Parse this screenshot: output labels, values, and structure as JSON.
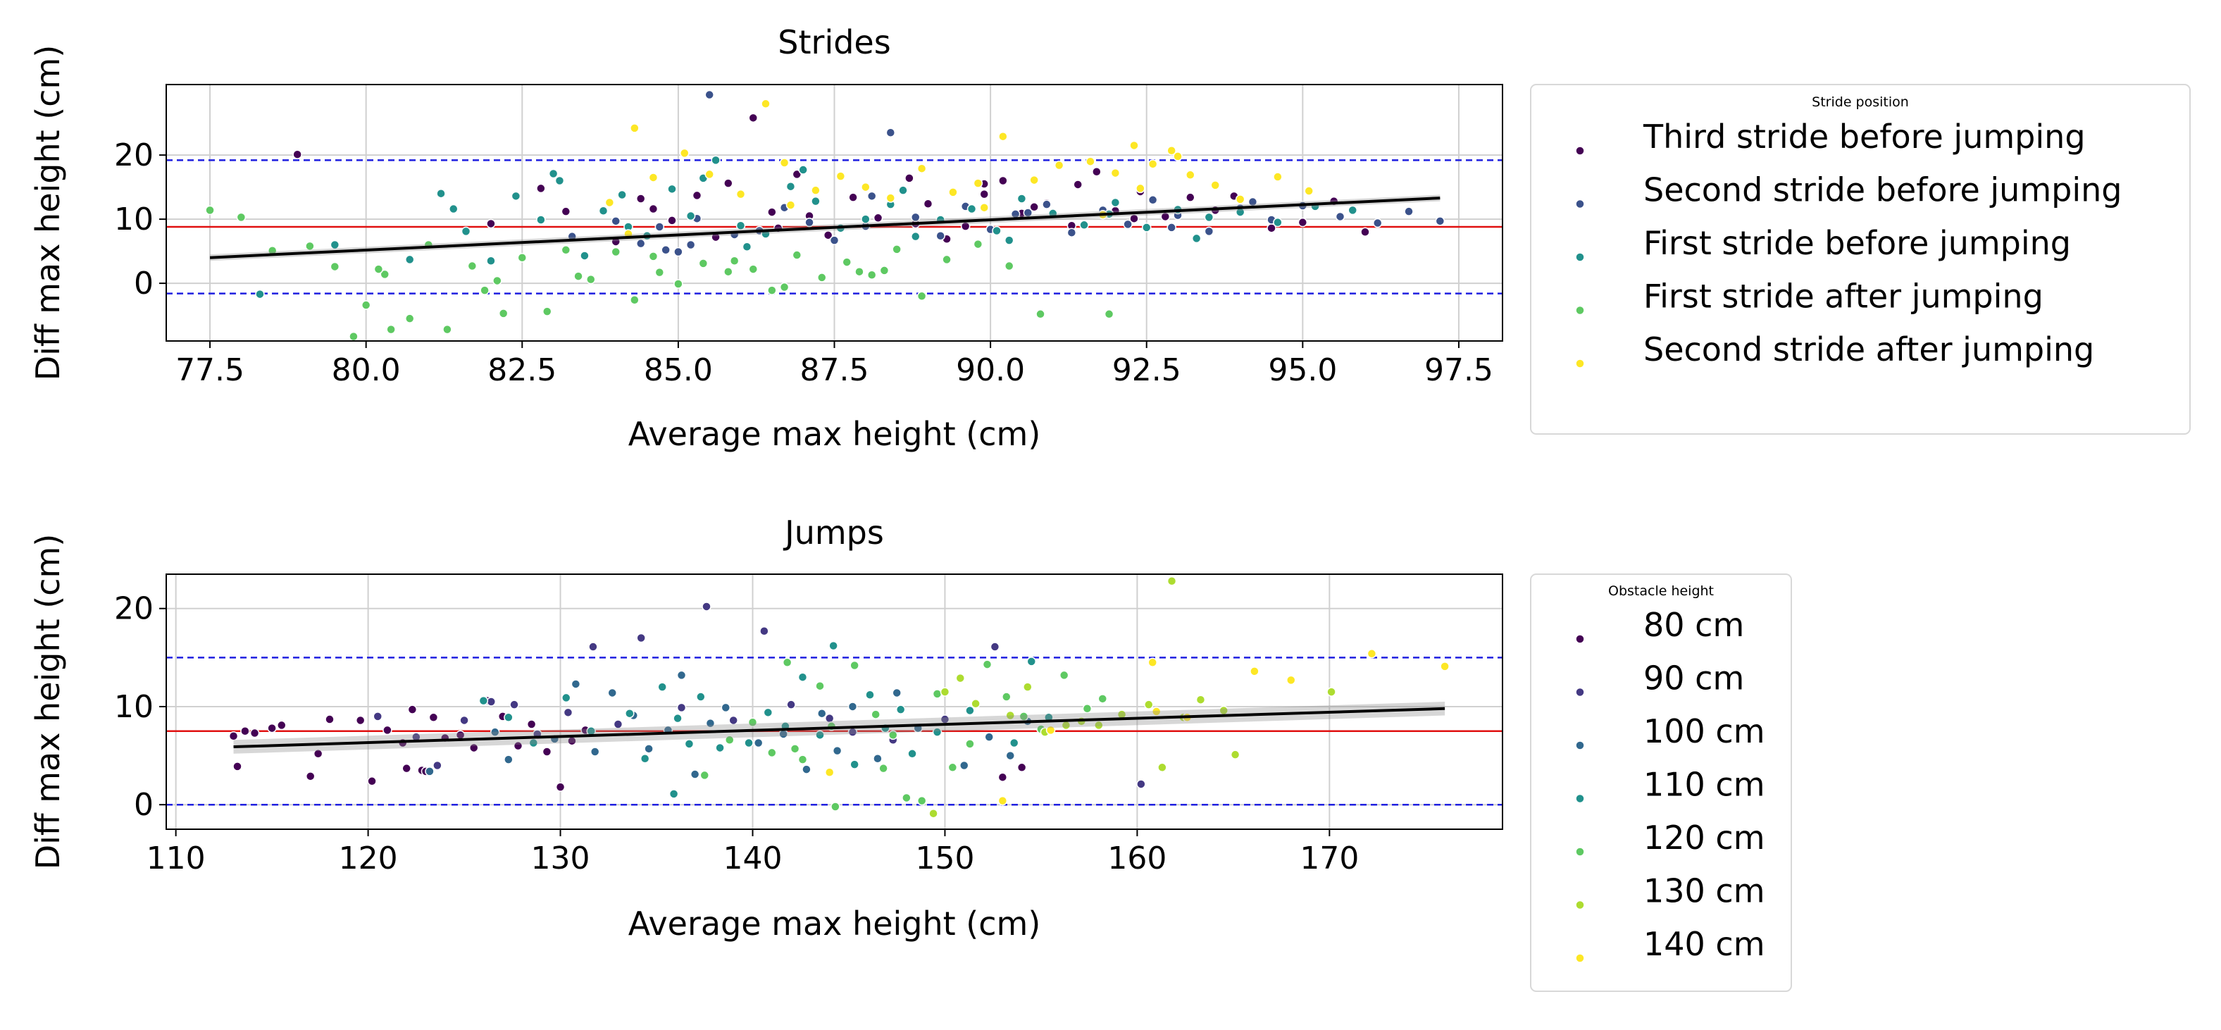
{
  "chart_data": [
    {
      "type": "scatter",
      "title": "Strides",
      "xlabel": "Average max height (cm)",
      "ylabel": "Diff max height (cm)",
      "xlim": [
        76.8,
        98.2
      ],
      "ylim": [
        -9,
        31
      ],
      "xticks": [
        "77.5",
        "80.0",
        "82.5",
        "85.0",
        "87.5",
        "90.0",
        "92.5",
        "95.0",
        "97.5"
      ],
      "xtick_values": [
        77.5,
        80.0,
        82.5,
        85.0,
        87.5,
        90.0,
        92.5,
        95.0,
        97.5
      ],
      "yticks": [
        "0",
        "10",
        "20"
      ],
      "ytick_values": [
        0,
        10,
        20
      ],
      "grid": true,
      "mean_line": 8.8,
      "limit_lines": [
        19.2,
        -1.6
      ],
      "regression": {
        "x": [
          77.5,
          97.2
        ],
        "y": [
          4.0,
          13.3
        ],
        "ci_halfwidth": 0.5
      },
      "legend_title": "Stride position",
      "series": [
        {
          "name": "Third stride before jumping",
          "color": "#440154",
          "x": [
            78.9,
            82.0,
            82.8,
            83.2,
            84.0,
            84.4,
            84.9,
            85.3,
            85.8,
            86.2,
            86.5,
            86.9,
            87.4,
            87.8,
            88.2,
            88.7,
            89.0,
            89.3,
            89.6,
            89.9,
            90.2,
            90.5,
            90.9,
            91.3,
            91.7,
            92.0,
            92.4,
            92.8,
            93.2,
            93.6,
            94.0,
            94.5,
            95.0,
            95.5,
            96.0,
            86.6,
            85.6,
            84.6,
            89.9,
            91.4,
            92.3,
            93.9,
            88.8,
            87.1,
            90.7
          ],
          "y": [
            20.1,
            9.3,
            14.8,
            11.2,
            6.5,
            13.2,
            9.8,
            13.7,
            15.6,
            25.8,
            11.1,
            17.0,
            7.5,
            13.4,
            10.2,
            16.4,
            12.4,
            6.9,
            8.9,
            15.5,
            16.0,
            10.9,
            12.5,
            9.0,
            17.4,
            11.3,
            14.3,
            10.4,
            13.4,
            11.4,
            12.9,
            8.6,
            9.5,
            12.8,
            8.0,
            8.6,
            7.2,
            11.6,
            13.9,
            15.4,
            10.1,
            13.6,
            9.3,
            10.5,
            11.9
          ]
        },
        {
          "name": "Second stride before jumping",
          "color": "#3b528b",
          "x": [
            83.3,
            84.0,
            84.4,
            84.7,
            85.0,
            85.3,
            85.5,
            85.9,
            86.3,
            86.7,
            87.1,
            87.5,
            88.0,
            88.4,
            88.8,
            89.2,
            89.6,
            90.0,
            90.4,
            90.9,
            91.3,
            91.8,
            92.2,
            92.6,
            93.0,
            93.5,
            94.0,
            94.5,
            95.0,
            95.6,
            96.2,
            96.7,
            97.2,
            85.2,
            84.8,
            86.0,
            88.1,
            90.6,
            92.9,
            94.2
          ],
          "y": [
            7.3,
            9.7,
            6.2,
            8.8,
            4.9,
            10.1,
            29.4,
            7.6,
            8.2,
            11.8,
            9.5,
            6.7,
            8.9,
            23.5,
            10.3,
            7.4,
            12.0,
            8.4,
            10.8,
            12.3,
            7.9,
            11.4,
            9.2,
            13.0,
            10.6,
            8.1,
            11.7,
            9.9,
            12.1,
            10.4,
            9.4,
            11.2,
            9.7,
            6.0,
            5.2,
            9.1,
            13.6,
            11.0,
            8.7,
            12.7
          ]
        },
        {
          "name": "First stride before jumping",
          "color": "#21918c",
          "x": [
            78.3,
            79.5,
            80.7,
            81.2,
            81.6,
            82.0,
            82.4,
            82.8,
            83.1,
            83.5,
            83.8,
            84.2,
            84.5,
            84.9,
            85.2,
            85.6,
            86.0,
            86.4,
            86.8,
            87.2,
            87.6,
            88.0,
            88.4,
            88.8,
            89.2,
            89.7,
            90.1,
            90.5,
            91.0,
            91.5,
            92.0,
            92.5,
            93.0,
            93.5,
            94.0,
            94.6,
            95.2,
            95.8,
            81.4,
            83.0,
            84.1,
            85.4,
            86.1,
            87.0,
            88.6,
            90.3,
            91.9,
            93.3
          ],
          "y": [
            -1.7,
            6.0,
            3.7,
            14.0,
            8.1,
            3.5,
            13.6,
            9.9,
            16.0,
            4.3,
            11.3,
            8.8,
            7.4,
            14.7,
            10.5,
            19.2,
            9.0,
            7.7,
            15.1,
            12.8,
            8.6,
            10.0,
            12.3,
            7.3,
            9.9,
            11.6,
            8.2,
            13.2,
            10.9,
            9.1,
            12.6,
            8.7,
            11.5,
            10.3,
            11.1,
            9.5,
            12.0,
            11.4,
            11.6,
            17.1,
            13.8,
            16.4,
            5.7,
            17.7,
            14.5,
            6.7,
            10.8,
            7.0
          ]
        },
        {
          "name": "First stride after jumping",
          "color": "#5ec962",
          "x": [
            77.5,
            78.0,
            78.5,
            79.1,
            79.5,
            80.0,
            80.3,
            80.7,
            81.0,
            81.3,
            81.7,
            82.1,
            82.5,
            82.9,
            83.2,
            83.6,
            84.0,
            84.3,
            84.7,
            85.0,
            85.4,
            85.8,
            86.2,
            86.5,
            86.9,
            87.3,
            87.7,
            88.1,
            88.5,
            88.9,
            89.3,
            89.8,
            90.3,
            90.8,
            91.9,
            79.8,
            80.4,
            81.9,
            83.4,
            84.6,
            85.9,
            86.7,
            87.9,
            88.3,
            80.2,
            82.2
          ],
          "y": [
            11.4,
            10.3,
            5.1,
            5.8,
            2.6,
            -3.4,
            1.4,
            -5.5,
            6.0,
            -7.2,
            2.7,
            0.4,
            4.0,
            -4.4,
            5.2,
            0.6,
            4.9,
            -2.6,
            1.7,
            -0.1,
            3.1,
            1.8,
            2.2,
            -1.1,
            4.4,
            0.9,
            3.3,
            1.3,
            5.3,
            -2.0,
            3.7,
            6.1,
            2.7,
            -4.8,
            -4.8,
            -8.3,
            -7.2,
            -1.1,
            1.1,
            4.2,
            3.5,
            -0.6,
            1.8,
            2.0,
            2.2,
            -4.7
          ]
        },
        {
          "name": "Second stride after jumping",
          "color": "#fde725",
          "x": [
            83.9,
            84.3,
            84.6,
            85.1,
            85.5,
            86.0,
            86.4,
            86.7,
            87.2,
            87.6,
            88.0,
            88.4,
            88.9,
            89.4,
            89.8,
            90.2,
            90.7,
            91.1,
            91.6,
            92.0,
            92.3,
            92.6,
            92.9,
            93.2,
            93.6,
            94.0,
            94.6,
            95.1,
            86.8,
            89.9,
            92.4,
            93.0,
            84.2,
            91.8
          ],
          "y": [
            12.6,
            24.2,
            16.5,
            20.3,
            17.0,
            13.9,
            28.0,
            18.8,
            14.5,
            16.7,
            15.0,
            13.3,
            17.9,
            14.2,
            15.6,
            22.9,
            16.1,
            18.4,
            19.0,
            17.2,
            21.5,
            18.6,
            20.7,
            16.9,
            15.3,
            13.1,
            16.6,
            14.4,
            12.2,
            11.8,
            14.8,
            19.8,
            7.7,
            10.7
          ]
        }
      ]
    },
    {
      "type": "scatter",
      "title": "Jumps",
      "xlabel": "Average max height (cm)",
      "ylabel": "Diff max height (cm)",
      "xlim": [
        109.5,
        179.0
      ],
      "ylim": [
        -2.5,
        23.5
      ],
      "xticks": [
        "110",
        "120",
        "130",
        "140",
        "150",
        "160",
        "170"
      ],
      "xtick_values": [
        110,
        120,
        130,
        140,
        150,
        160,
        170
      ],
      "yticks": [
        "0",
        "10",
        "20"
      ],
      "ytick_values": [
        0,
        10,
        20
      ],
      "grid": true,
      "mean_line": 7.5,
      "limit_lines": [
        15.0,
        0.0
      ],
      "regression": {
        "x": [
          113,
          176
        ],
        "y": [
          5.9,
          9.8
        ],
        "ci_halfwidth": 0.7
      },
      "legend_title": "Obstacle height",
      "series": [
        {
          "name": "80 cm",
          "color": "#440154",
          "x": [
            113.0,
            113.2,
            113.6,
            114.1,
            115.0,
            115.5,
            117.0,
            117.4,
            118.0,
            119.6,
            120.2,
            121.0,
            121.8,
            122.3,
            122.8,
            123.4,
            124.0,
            124.8,
            125.5,
            126.2,
            127.0,
            127.8,
            128.5,
            129.3,
            130.0,
            130.6,
            131.3,
            122.0,
            123.0,
            153.0,
            154.0
          ],
          "y": [
            7.0,
            3.9,
            7.5,
            7.3,
            7.8,
            8.1,
            2.9,
            5.2,
            8.7,
            8.6,
            2.4,
            7.6,
            6.3,
            9.7,
            3.5,
            8.9,
            6.8,
            7.1,
            5.8,
            10.6,
            9.0,
            6.0,
            8.2,
            5.4,
            1.8,
            6.5,
            7.6,
            3.7,
            3.4,
            2.8,
            3.8
          ]
        },
        {
          "name": "90 cm",
          "color": "#443983",
          "x": [
            120.5,
            122.5,
            123.6,
            125.0,
            126.4,
            127.6,
            128.8,
            130.4,
            131.7,
            133.0,
            134.2,
            136.3,
            137.6,
            139.0,
            140.6,
            142.0,
            144.0,
            145.2,
            147.3,
            150.0,
            152.6,
            160.2
          ],
          "y": [
            9.0,
            6.9,
            4.0,
            8.6,
            10.5,
            10.2,
            7.2,
            9.4,
            16.1,
            8.2,
            17.0,
            9.9,
            20.2,
            8.6,
            17.7,
            10.2,
            8.8,
            7.4,
            6.6,
            8.7,
            16.1,
            2.1
          ]
        },
        {
          "name": "100 cm",
          "color": "#31688e",
          "x": [
            123.2,
            126.6,
            127.3,
            129.7,
            130.8,
            131.8,
            132.7,
            133.8,
            134.6,
            135.6,
            136.3,
            137.0,
            137.8,
            138.6,
            140.3,
            141.6,
            142.8,
            143.6,
            144.4,
            145.2,
            146.5,
            147.5,
            148.6,
            151.0,
            152.3,
            153.4,
            154.3
          ],
          "y": [
            3.4,
            7.4,
            4.6,
            6.7,
            12.3,
            5.4,
            11.4,
            9.1,
            5.7,
            7.6,
            13.2,
            3.1,
            8.3,
            9.9,
            6.3,
            7.2,
            3.6,
            9.3,
            5.5,
            10.0,
            4.7,
            11.4,
            7.8,
            4.0,
            6.9,
            5.0,
            8.5
          ]
        },
        {
          "name": "110 cm",
          "color": "#21918c",
          "x": [
            126.0,
            127.3,
            128.6,
            130.3,
            131.6,
            133.6,
            134.4,
            135.3,
            136.1,
            136.7,
            137.3,
            138.3,
            139.8,
            140.8,
            141.7,
            142.6,
            143.5,
            144.2,
            145.3,
            146.1,
            146.9,
            147.7,
            148.3,
            149.6,
            151.3,
            153.6,
            154.5,
            155.4,
            135.9
          ],
          "y": [
            10.6,
            8.9,
            6.3,
            10.9,
            7.5,
            9.3,
            4.7,
            12.0,
            8.8,
            6.2,
            11.0,
            5.8,
            6.3,
            9.4,
            8.0,
            13.0,
            7.1,
            16.2,
            4.1,
            11.2,
            7.8,
            9.7,
            5.2,
            7.4,
            9.6,
            6.3,
            14.6,
            8.9,
            1.1
          ]
        },
        {
          "name": "120 cm",
          "color": "#5ec962",
          "x": [
            137.5,
            138.8,
            140.0,
            141.0,
            141.8,
            142.6,
            143.5,
            144.3,
            145.3,
            146.4,
            147.3,
            148.0,
            148.8,
            149.6,
            150.4,
            151.3,
            152.2,
            153.2,
            154.1,
            155.0,
            156.2,
            157.4,
            158.2,
            142.2,
            146.8,
            144.1
          ],
          "y": [
            3.0,
            6.6,
            8.4,
            5.3,
            14.5,
            4.6,
            12.1,
            -0.2,
            14.2,
            9.2,
            7.1,
            0.7,
            0.4,
            11.3,
            3.8,
            6.2,
            14.3,
            11.0,
            9.0,
            7.7,
            13.2,
            9.8,
            10.8,
            5.7,
            3.7,
            8.0
          ]
        },
        {
          "name": "130 cm",
          "color": "#addc30",
          "x": [
            149.4,
            150.0,
            150.8,
            151.6,
            153.4,
            154.3,
            155.2,
            156.3,
            157.1,
            158.0,
            159.2,
            160.6,
            161.3,
            161.8,
            162.4,
            163.3,
            164.5,
            165.1,
            170.1
          ],
          "y": [
            -0.9,
            11.5,
            12.9,
            10.3,
            9.1,
            12.0,
            7.4,
            8.1,
            8.5,
            8.1,
            9.2,
            10.2,
            3.8,
            22.8,
            8.9,
            10.7,
            9.6,
            5.1,
            11.5
          ]
        },
        {
          "name": "140 cm",
          "color": "#fde725",
          "x": [
            144.0,
            153.0,
            155.5,
            160.8,
            162.6,
            166.1,
            172.2,
            176.0,
            168.0,
            161.0
          ],
          "y": [
            3.3,
            0.4,
            7.6,
            14.5,
            8.9,
            13.6,
            15.4,
            14.1,
            12.7,
            9.5
          ]
        }
      ]
    }
  ]
}
